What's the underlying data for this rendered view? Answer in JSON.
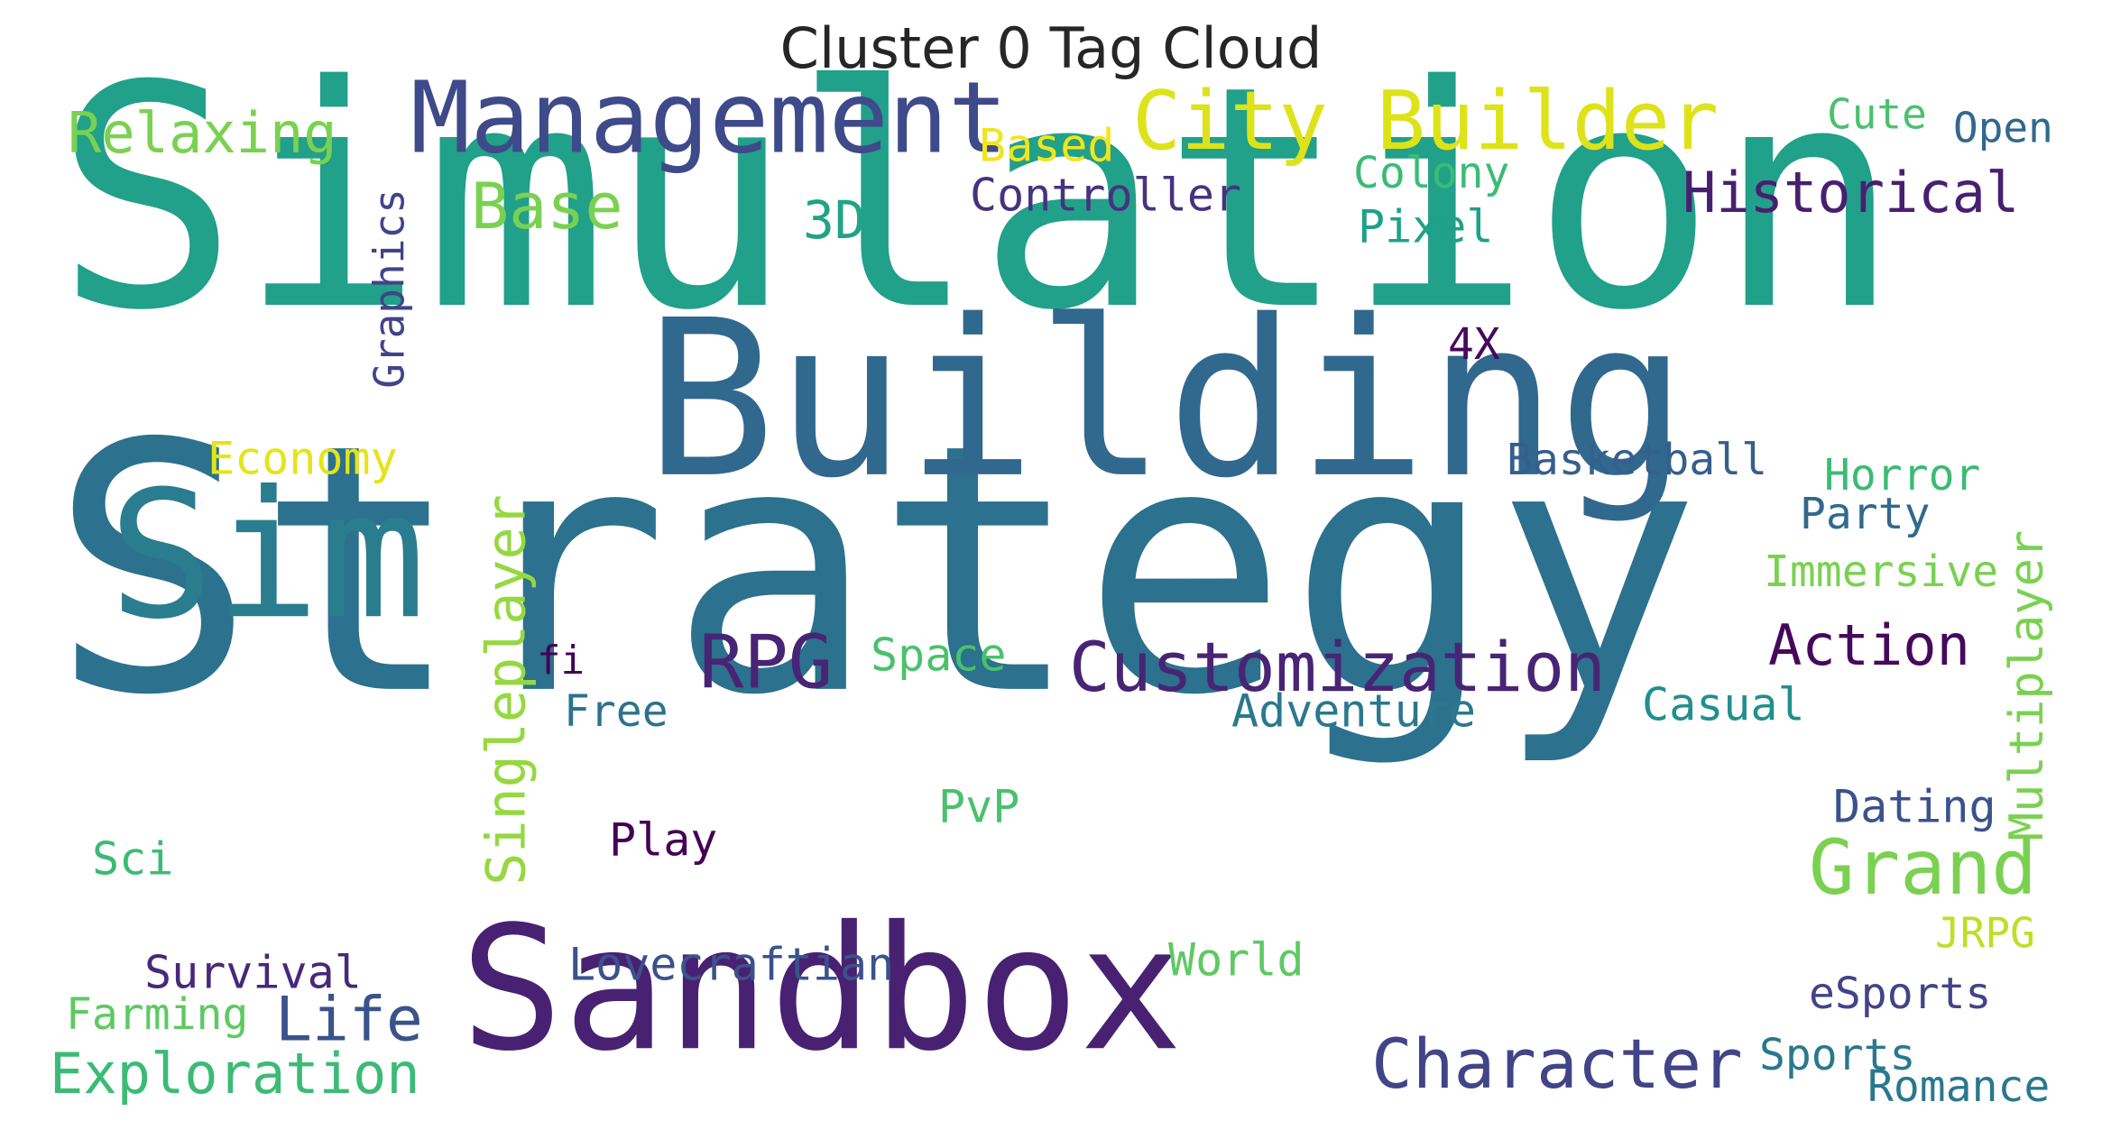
{
  "title": "Cluster 0 Tag Cloud",
  "words": [
    {
      "text": "Simulation",
      "color": "#21a08a"
    },
    {
      "text": "Strategy",
      "color": "#2c718e"
    },
    {
      "text": "Building",
      "color": "#31688e"
    },
    {
      "text": "Sandbox",
      "color": "#482173"
    },
    {
      "text": "Sim",
      "color": "#2a7d8e"
    },
    {
      "text": "Management",
      "color": "#3e4a89"
    },
    {
      "text": "City Builder",
      "color": "#dde318"
    },
    {
      "text": "Relaxing",
      "color": "#7ad151"
    },
    {
      "text": "Based",
      "color": "#f1e51d"
    },
    {
      "text": "Cute",
      "color": "#4ac16d"
    },
    {
      "text": "Open",
      "color": "#31688e"
    },
    {
      "text": "Colony",
      "color": "#3bbb75"
    },
    {
      "text": "Base",
      "color": "#7ad151"
    },
    {
      "text": "Controller",
      "color": "#46337f"
    },
    {
      "text": "Historical",
      "color": "#481f70"
    },
    {
      "text": "3D",
      "color": "#20a386"
    },
    {
      "text": "Pixel",
      "color": "#1fa188"
    },
    {
      "text": "Graphics",
      "color": "#414487"
    },
    {
      "text": "4X",
      "color": "#46085c"
    },
    {
      "text": "Economy",
      "color": "#e5e419"
    },
    {
      "text": "Basketball",
      "color": "#355f8d"
    },
    {
      "text": "Horror",
      "color": "#3bbb75"
    },
    {
      "text": "Party",
      "color": "#31688e"
    },
    {
      "text": "Multiplayer",
      "color": "#7ad151"
    },
    {
      "text": "Immersive",
      "color": "#7ad151"
    },
    {
      "text": "Singleplayer",
      "color": "#95d840"
    },
    {
      "text": "RPG",
      "color": "#482475"
    },
    {
      "text": "Customization",
      "color": "#482475"
    },
    {
      "text": "Action",
      "color": "#46085c"
    },
    {
      "text": "fi",
      "color": "#440154"
    },
    {
      "text": "Space",
      "color": "#4ac16d"
    },
    {
      "text": "Free",
      "color": "#2c728e"
    },
    {
      "text": "Adventure",
      "color": "#2a788e"
    },
    {
      "text": "Casual",
      "color": "#218f8d"
    },
    {
      "text": "PvP",
      "color": "#4ac16d"
    },
    {
      "text": "Grand",
      "color": "#7ad151"
    },
    {
      "text": "Dating",
      "color": "#3b528b"
    },
    {
      "text": "Sci",
      "color": "#3bbb75"
    },
    {
      "text": "Play",
      "color": "#440154"
    },
    {
      "text": "JRPG",
      "color": "#bddf26"
    },
    {
      "text": "Survival",
      "color": "#482878"
    },
    {
      "text": "Lovecraftian",
      "color": "#3b528b"
    },
    {
      "text": "World",
      "color": "#5ec962"
    },
    {
      "text": "Life",
      "color": "#3b528b"
    },
    {
      "text": "eSports",
      "color": "#414487"
    },
    {
      "text": "Farming",
      "color": "#5ec962"
    },
    {
      "text": "Exploration",
      "color": "#3bbb75"
    },
    {
      "text": "Character",
      "color": "#414487"
    },
    {
      "text": "Sports",
      "color": "#2a788e"
    },
    {
      "text": "Romance",
      "color": "#2a788e"
    }
  ]
}
